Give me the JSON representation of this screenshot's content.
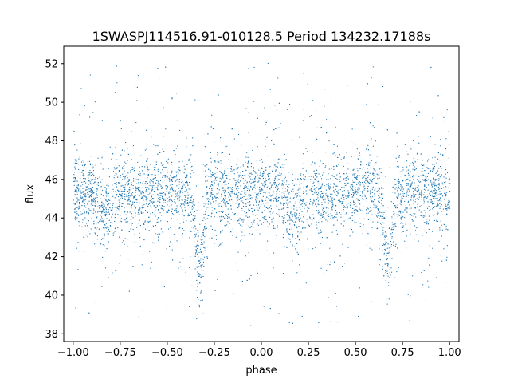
{
  "chart_data": {
    "type": "scatter",
    "title": "1SWASPJ114516.91-010128.5 Period 134232.17188s",
    "xlabel": "phase",
    "ylabel": "flux",
    "xlim": [
      -1.05,
      1.05
    ],
    "ylim": [
      37.6,
      52.9
    ],
    "xticks": [
      -1.0,
      -0.75,
      -0.5,
      -0.25,
      0.0,
      0.25,
      0.5,
      0.75,
      1.0
    ],
    "xtick_labels": [
      "−1.00",
      "−0.75",
      "−0.50",
      "−0.25",
      "0.00",
      "0.25",
      "0.50",
      "0.75",
      "1.00"
    ],
    "yticks": [
      38,
      40,
      42,
      44,
      46,
      48,
      50,
      52
    ],
    "ytick_labels": [
      "38",
      "40",
      "42",
      "44",
      "46",
      "48",
      "50",
      "52"
    ],
    "point_color": "#1f77b4",
    "grid": false,
    "legend": "none",
    "series": [
      {
        "description_of_trend": "phase-folded light curve, two cycles",
        "phase_range": [
          -1.0,
          1.0
        ],
        "baseline_flux": 45.3,
        "baseline_scatter": 0.9,
        "primary_eclipse": {
          "phases": [
            -0.33,
            0.67
          ],
          "min_flux": 41.6
        },
        "secondary_eclipse": {
          "phases": [
            -0.83,
            0.17
          ],
          "min_flux": 44.3
        },
        "outlier_range": [
          38.4,
          52.2
        ]
      }
    ]
  }
}
